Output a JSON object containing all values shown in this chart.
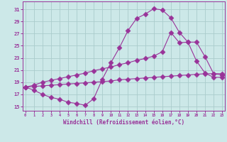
{
  "xlabel": "Windchill (Refroidissement éolien,°C)",
  "bg_color": "#cce8e8",
  "grid_color": "#aacccc",
  "line_color": "#993399",
  "x_ticks": [
    0,
    1,
    2,
    3,
    4,
    5,
    6,
    7,
    8,
    9,
    10,
    11,
    12,
    13,
    14,
    15,
    16,
    17,
    18,
    19,
    20,
    21,
    22,
    23
  ],
  "y_ticks": [
    15,
    17,
    19,
    21,
    23,
    25,
    27,
    29,
    31
  ],
  "xlim": [
    -0.3,
    23.3
  ],
  "ylim": [
    14.3,
    32.3
  ],
  "series1_x": [
    0,
    1,
    2,
    3,
    4,
    5,
    6,
    7,
    8,
    9,
    10,
    11,
    12,
    13,
    14,
    15,
    16,
    17,
    18,
    19,
    20,
    21,
    22,
    23
  ],
  "series1_y": [
    18.2,
    17.7,
    17.0,
    16.5,
    16.2,
    15.7,
    15.5,
    15.2,
    16.3,
    19.5,
    22.2,
    24.7,
    27.5,
    29.5,
    30.2,
    31.1,
    30.9,
    29.6,
    27.2,
    25.6,
    22.5,
    20.5,
    19.8,
    19.8
  ],
  "series2_x": [
    0,
    1,
    2,
    3,
    4,
    5,
    6,
    7,
    8,
    9,
    10,
    11,
    12,
    13,
    14,
    15,
    16,
    17,
    18,
    19,
    20,
    21,
    22,
    23
  ],
  "series2_y": [
    18.2,
    18.5,
    19.0,
    19.3,
    19.6,
    19.9,
    20.2,
    20.5,
    20.9,
    21.2,
    21.5,
    21.9,
    22.2,
    22.6,
    22.9,
    23.3,
    24.0,
    27.2,
    25.5,
    25.6,
    25.6,
    23.2,
    20.4,
    20.2
  ],
  "series3_x": [
    0,
    1,
    2,
    3,
    4,
    5,
    6,
    7,
    8,
    9,
    10,
    11,
    12,
    13,
    14,
    15,
    16,
    17,
    18,
    19,
    20,
    21,
    22,
    23
  ],
  "series3_y": [
    18.2,
    18.3,
    18.4,
    18.5,
    18.6,
    18.7,
    18.8,
    18.9,
    19.0,
    19.1,
    19.2,
    19.4,
    19.5,
    19.6,
    19.7,
    19.8,
    19.9,
    20.0,
    20.1,
    20.2,
    20.3,
    20.4,
    20.4,
    20.4
  ]
}
